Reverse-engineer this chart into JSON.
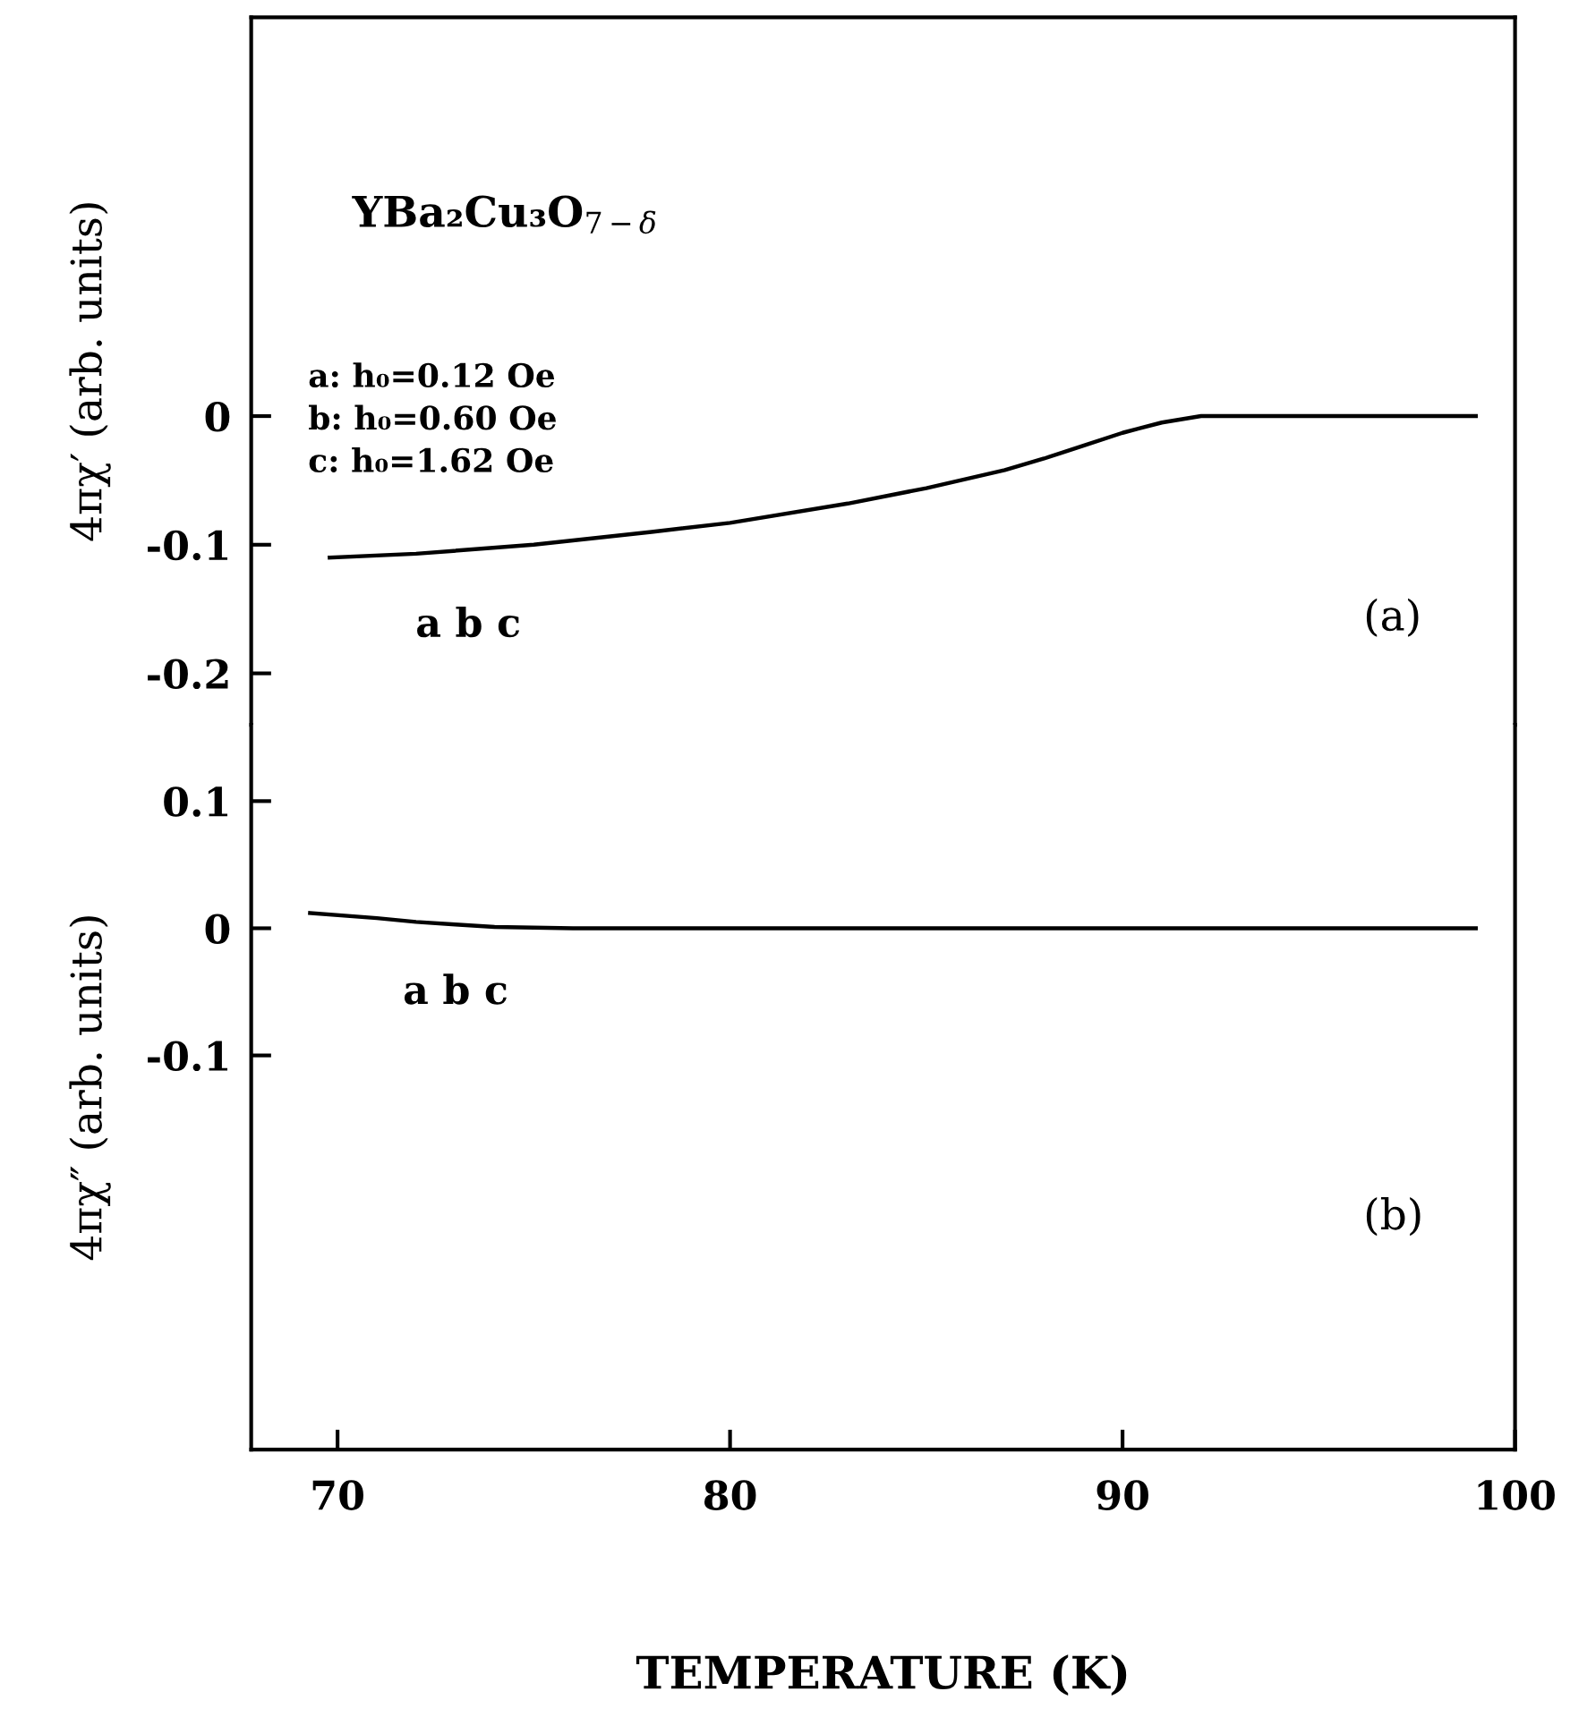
{
  "chart_data": [
    {
      "type": "line",
      "ylabel": "4πχ′ (arb. units)",
      "xlim": [
        67.8,
        100
      ],
      "xticks": [
        70,
        80,
        90,
        100
      ],
      "ylim": [
        -0.24,
        0.31
      ],
      "yticks": [
        0,
        -0.1,
        -0.2
      ],
      "tick_labels": "y",
      "grid": false,
      "annotations": [
        "YBa₂Cu₃O$_{7−δ}$",
        "a: h₀=0.12 Oe",
        "b: h₀=0.60 Oe",
        "c: h₀=1.62 Oe",
        "a b c",
        "(a)"
      ],
      "series": [
        {
          "color": "#000000",
          "x": [
            69.8,
            72,
            75,
            78,
            80,
            83,
            85,
            87,
            88,
            89,
            90,
            91,
            92,
            95,
            99
          ],
          "values": [
            -0.11,
            -0.107,
            -0.1,
            -0.09,
            -0.083,
            -0.068,
            -0.056,
            -0.042,
            -0.033,
            -0.023,
            -0.013,
            -0.005,
            0,
            0,
            0
          ]
        }
      ]
    },
    {
      "type": "line",
      "ylabel": "4πχ″ (arb. units)",
      "xlabel": "TEMPERATURE (K)",
      "xlim": [
        67.8,
        100
      ],
      "xticks": [
        70,
        80,
        90,
        100
      ],
      "ylim": [
        -0.41,
        0.16
      ],
      "yticks": [
        0.1,
        0,
        -0.1
      ],
      "grid": false,
      "annotations": [
        "a b c",
        "(b)"
      ],
      "series": [
        {
          "color": "#000000",
          "x": [
            69.3,
            71,
            72,
            73,
            74,
            76,
            80,
            90,
            99
          ],
          "values": [
            0.012,
            0.008,
            0.005,
            0.003,
            0.001,
            0,
            0,
            0,
            0
          ]
        }
      ]
    }
  ]
}
